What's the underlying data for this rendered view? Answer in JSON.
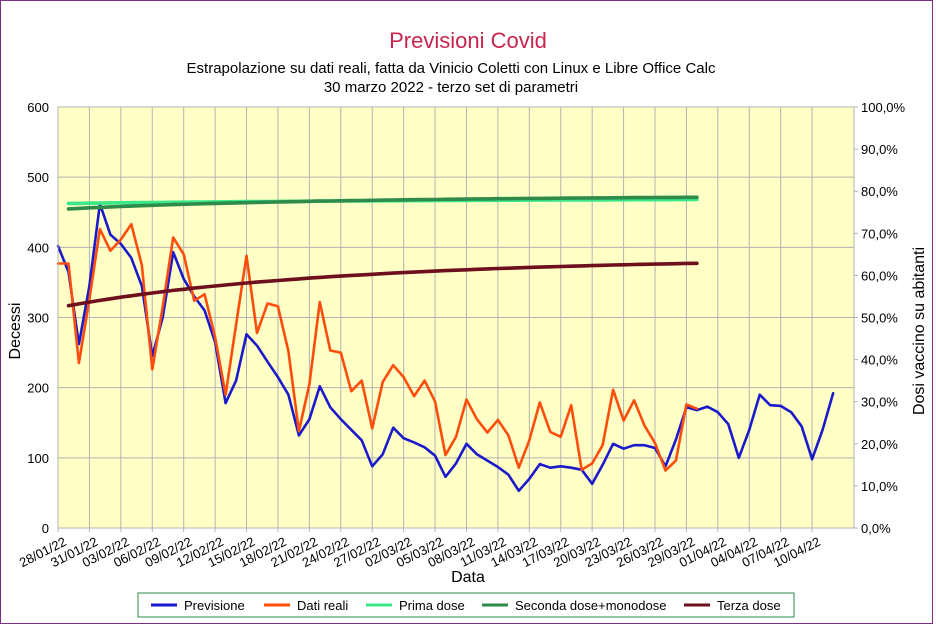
{
  "chart_data": {
    "type": "line",
    "title": "Previsioni Covid",
    "subtitle_lines": [
      "Estrapolazione su dati reali, fatta da Vinicio Coletti con Linux e Libre Office Calc",
      "30 marzo 2022 - terzo set di parametri"
    ],
    "xlabel": "Data",
    "ylabel": "Decessi",
    "y2label": "Dosi vaccino su abitanti",
    "ylim": [
      0,
      600
    ],
    "y2lim": [
      0,
      100
    ],
    "yticks": [
      "0",
      "100",
      "200",
      "300",
      "400",
      "500",
      "600"
    ],
    "y2ticks": [
      "0,0%",
      "10,0%",
      "20,0%",
      "30,0%",
      "40,0%",
      "50,0%",
      "60,0%",
      "70,0%",
      "80,0%",
      "90,0%",
      "100,0%"
    ],
    "x_start": "2022-01-28",
    "x_end": "2022-04-14",
    "xtick_labels": [
      "28/01/22",
      "31/01/22",
      "03/02/22",
      "06/02/22",
      "09/02/22",
      "12/02/22",
      "15/02/22",
      "18/02/22",
      "21/02/22",
      "24/02/22",
      "27/02/22",
      "02/03/22",
      "05/03/22",
      "08/03/22",
      "11/03/22",
      "14/03/22",
      "17/03/22",
      "20/03/22",
      "23/03/22",
      "26/03/22",
      "29/03/22",
      "01/04/22",
      "04/04/22",
      "07/04/22",
      "10/04/22"
    ],
    "grid": true,
    "plot_background": "#ffffc6",
    "legend_position": "bottom",
    "series": [
      {
        "name": "Previsione",
        "axis": "left",
        "color": "#1a1acc",
        "start": "2022-01-28",
        "values": [
          402,
          365,
          262,
          345,
          462,
          418,
          405,
          385,
          345,
          245,
          300,
          393,
          355,
          330,
          310,
          265,
          178,
          210,
          276,
          260,
          237,
          215,
          190,
          132,
          155,
          202,
          172,
          155,
          140,
          125,
          88,
          105,
          143,
          128,
          122,
          115,
          103,
          73,
          92,
          120,
          105,
          96,
          87,
          76,
          53,
          70,
          91,
          86,
          88,
          86,
          83,
          63,
          90,
          120,
          113,
          118,
          118,
          114,
          88,
          126,
          172,
          168,
          173,
          165,
          148,
          100,
          140,
          190,
          175,
          174,
          165,
          145,
          98,
          140,
          192
        ]
      },
      {
        "name": "Dati reali",
        "axis": "left",
        "color": "#ff4d0d",
        "start": "2022-01-28",
        "values": [
          377,
          377,
          235,
          326,
          426,
          395,
          411,
          433,
          375,
          226,
          315,
          414,
          390,
          324,
          333,
          272,
          190,
          290,
          388,
          278,
          320,
          316,
          252,
          138,
          205,
          322,
          253,
          250,
          195,
          210,
          142,
          208,
          232,
          215,
          188,
          210,
          180,
          104,
          130,
          183,
          155,
          136,
          154,
          132,
          86,
          125,
          179,
          137,
          130,
          175,
          83,
          92,
          118,
          197,
          153,
          182,
          146,
          121,
          82,
          96,
          176,
          170
        ]
      },
      {
        "name": "Prima dose",
        "axis": "right",
        "color": "#3ae88a",
        "start": "2022-01-29",
        "values": [
          77.1,
          77.11,
          77.15,
          77.18,
          77.21,
          77.24,
          77.27,
          77.3,
          77.32,
          77.35,
          77.37,
          77.39,
          77.42,
          77.44,
          77.46,
          77.48,
          77.5,
          77.52,
          77.54,
          77.55,
          77.57,
          77.59,
          77.6,
          77.62,
          77.64,
          77.65,
          77.67,
          77.68,
          77.69,
          77.71,
          77.72,
          77.73,
          77.75,
          77.76,
          77.77,
          77.78,
          77.79,
          77.8,
          77.82,
          77.83,
          77.84,
          77.85,
          77.86,
          77.87,
          77.88,
          77.89,
          77.9,
          77.91,
          77.92,
          77.92,
          77.93,
          77.94,
          77.95,
          77.96,
          77.97,
          77.98,
          77.98,
          77.99,
          78.0,
          78.01,
          78.02
        ]
      },
      {
        "name": "Seconda dose+monodose",
        "axis": "right",
        "color": "#2e8b4a",
        "start": "2022-01-29",
        "values": [
          75.8,
          75.92,
          76.05,
          76.16,
          76.27,
          76.37,
          76.47,
          76.56,
          76.65,
          76.73,
          76.81,
          76.89,
          76.96,
          77.03,
          77.1,
          77.16,
          77.22,
          77.28,
          77.34,
          77.39,
          77.44,
          77.49,
          77.54,
          77.59,
          77.64,
          77.68,
          77.72,
          77.76,
          77.8,
          77.84,
          77.88,
          77.91,
          77.95,
          77.98,
          78.01,
          78.04,
          78.07,
          78.1,
          78.13,
          78.16,
          78.18,
          78.21,
          78.23,
          78.26,
          78.28,
          78.3,
          78.32,
          78.34,
          78.36,
          78.38,
          78.4,
          78.42,
          78.44,
          78.45,
          78.47,
          78.49,
          78.5,
          78.52,
          78.53,
          78.55,
          78.56
        ]
      },
      {
        "name": "Terza dose",
        "axis": "right",
        "color": "#6e0f1e",
        "start": "2022-01-29",
        "values": [
          52.8,
          53.24,
          53.66,
          54.06,
          54.45,
          54.81,
          55.16,
          55.5,
          55.82,
          56.13,
          56.43,
          56.71,
          56.98,
          57.24,
          57.49,
          57.73,
          57.96,
          58.19,
          58.4,
          58.6,
          58.8,
          58.99,
          59.17,
          59.35,
          59.52,
          59.68,
          59.84,
          59.99,
          60.13,
          60.27,
          60.41,
          60.54,
          60.67,
          60.79,
          60.91,
          61.02,
          61.13,
          61.24,
          61.34,
          61.44,
          61.54,
          61.63,
          61.72,
          61.81,
          61.89,
          61.97,
          62.05,
          62.12,
          62.19,
          62.26,
          62.33,
          62.4,
          62.46,
          62.52,
          62.58,
          62.63,
          62.69,
          62.74,
          62.79,
          62.84,
          62.88
        ]
      }
    ]
  }
}
